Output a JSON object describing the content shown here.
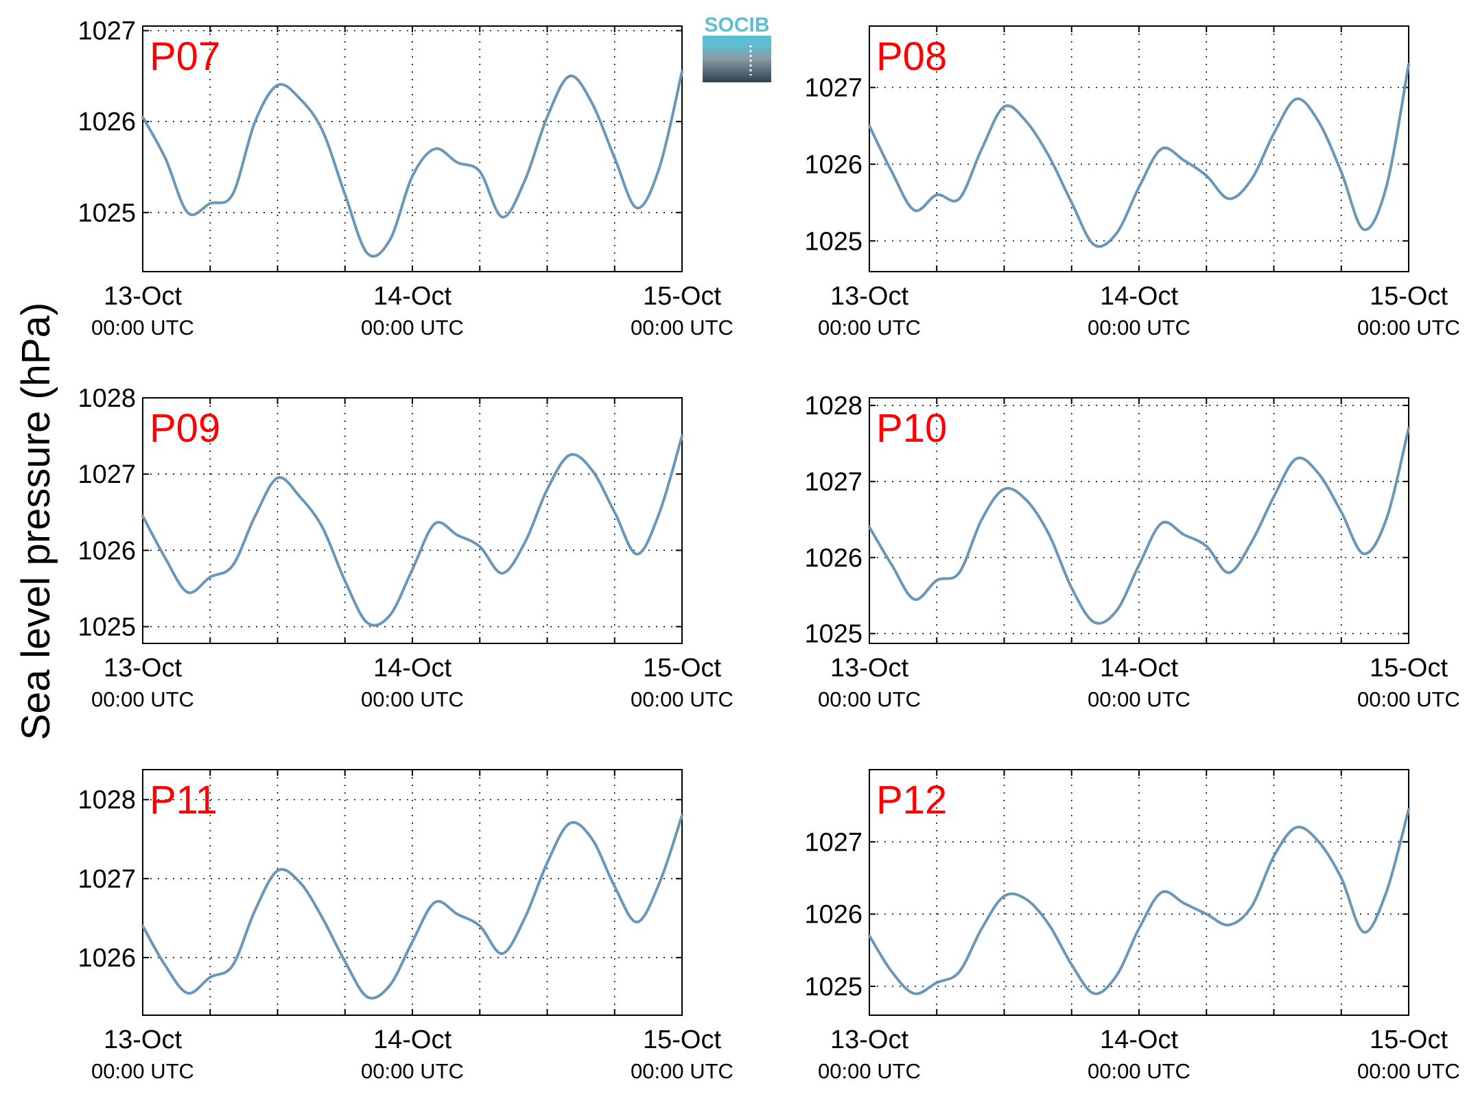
{
  "figure": {
    "ylabel": "Sea level pressure (hPa)",
    "logo_text": "SOCIB",
    "line_color": "#6a96b8",
    "label_color": "#ff0000",
    "grid": "dotted",
    "logo_colors": {
      "text": "#5bbfd0",
      "top": "#5bbfd0",
      "mid": "#8c9ca6",
      "bottom": "#2d4450"
    }
  },
  "chart_data": [
    {
      "type": "line",
      "label": "P07",
      "x_range": [
        "13-Oct 00:00 UTC",
        "15-Oct 00:00 UTC"
      ],
      "x_hours": [
        0,
        2,
        4,
        6,
        8,
        10,
        12,
        14,
        16,
        18,
        20,
        22,
        24,
        26,
        28,
        30,
        32,
        34,
        36,
        38,
        40,
        42,
        44,
        46,
        48
      ],
      "x_ticks": [
        {
          "hours": 0,
          "day": "13-Oct",
          "time": "00:00 UTC"
        },
        {
          "hours": 24,
          "day": "14-Oct",
          "time": "00:00 UTC"
        },
        {
          "hours": 48,
          "day": "15-Oct",
          "time": "00:00 UTC"
        }
      ],
      "ylim": [
        1024.35,
        1027.05
      ],
      "yticks": [
        1025,
        1026,
        1027
      ],
      "y": [
        1026.05,
        1025.6,
        1025.0,
        1025.1,
        1025.2,
        1026.0,
        1026.4,
        1026.25,
        1025.9,
        1025.2,
        1024.55,
        1024.7,
        1025.4,
        1025.7,
        1025.55,
        1025.45,
        1024.95,
        1025.35,
        1026.05,
        1026.5,
        1026.2,
        1025.6,
        1025.05,
        1025.5,
        1026.55
      ]
    },
    {
      "type": "line",
      "label": "P08",
      "x_range": [
        "13-Oct 00:00 UTC",
        "15-Oct 00:00 UTC"
      ],
      "x_hours": [
        0,
        2,
        4,
        6,
        8,
        10,
        12,
        14,
        16,
        18,
        20,
        22,
        24,
        26,
        28,
        30,
        32,
        34,
        36,
        38,
        40,
        42,
        44,
        46,
        48
      ],
      "x_ticks": [
        {
          "hours": 0,
          "day": "13-Oct",
          "time": "00:00 UTC"
        },
        {
          "hours": 24,
          "day": "14-Oct",
          "time": "00:00 UTC"
        },
        {
          "hours": 48,
          "day": "15-Oct",
          "time": "00:00 UTC"
        }
      ],
      "ylim": [
        1024.6,
        1027.8
      ],
      "yticks": [
        1025,
        1026,
        1027
      ],
      "y": [
        1026.5,
        1025.9,
        1025.4,
        1025.6,
        1025.55,
        1026.2,
        1026.75,
        1026.55,
        1026.1,
        1025.5,
        1024.95,
        1025.1,
        1025.7,
        1026.2,
        1026.05,
        1025.85,
        1025.55,
        1025.8,
        1026.4,
        1026.85,
        1026.55,
        1025.9,
        1025.15,
        1025.7,
        1027.3
      ]
    },
    {
      "type": "line",
      "label": "P09",
      "x_range": [
        "13-Oct 00:00 UTC",
        "15-Oct 00:00 UTC"
      ],
      "x_hours": [
        0,
        2,
        4,
        6,
        8,
        10,
        12,
        14,
        16,
        18,
        20,
        22,
        24,
        26,
        28,
        30,
        32,
        34,
        36,
        38,
        40,
        42,
        44,
        46,
        48
      ],
      "x_ticks": [
        {
          "hours": 0,
          "day": "13-Oct",
          "time": "00:00 UTC"
        },
        {
          "hours": 24,
          "day": "14-Oct",
          "time": "00:00 UTC"
        },
        {
          "hours": 48,
          "day": "15-Oct",
          "time": "00:00 UTC"
        }
      ],
      "ylim": [
        1024.78,
        1028.0
      ],
      "yticks": [
        1025,
        1026,
        1027,
        1028
      ],
      "y": [
        1026.45,
        1025.9,
        1025.45,
        1025.65,
        1025.8,
        1026.45,
        1026.95,
        1026.7,
        1026.3,
        1025.6,
        1025.05,
        1025.15,
        1025.75,
        1026.35,
        1026.2,
        1026.05,
        1025.7,
        1026.1,
        1026.8,
        1027.25,
        1027.05,
        1026.5,
        1025.95,
        1026.5,
        1027.5
      ]
    },
    {
      "type": "line",
      "label": "P10",
      "x_range": [
        "13-Oct 00:00 UTC",
        "15-Oct 00:00 UTC"
      ],
      "x_hours": [
        0,
        2,
        4,
        6,
        8,
        10,
        12,
        14,
        16,
        18,
        20,
        22,
        24,
        26,
        28,
        30,
        32,
        34,
        36,
        38,
        40,
        42,
        44,
        46,
        48
      ],
      "x_ticks": [
        {
          "hours": 0,
          "day": "13-Oct",
          "time": "00:00 UTC"
        },
        {
          "hours": 24,
          "day": "14-Oct",
          "time": "00:00 UTC"
        },
        {
          "hours": 48,
          "day": "15-Oct",
          "time": "00:00 UTC"
        }
      ],
      "ylim": [
        1024.87,
        1028.1
      ],
      "yticks": [
        1025,
        1026,
        1027,
        1028
      ],
      "y": [
        1026.4,
        1025.9,
        1025.45,
        1025.7,
        1025.8,
        1026.5,
        1026.9,
        1026.75,
        1026.3,
        1025.6,
        1025.15,
        1025.3,
        1025.9,
        1026.45,
        1026.3,
        1026.15,
        1025.8,
        1026.2,
        1026.8,
        1027.3,
        1027.1,
        1026.6,
        1026.05,
        1026.5,
        1027.7
      ]
    },
    {
      "type": "line",
      "label": "P11",
      "x_range": [
        "13-Oct 00:00 UTC",
        "15-Oct 00:00 UTC"
      ],
      "x_hours": [
        0,
        2,
        4,
        6,
        8,
        10,
        12,
        14,
        16,
        18,
        20,
        22,
        24,
        26,
        28,
        30,
        32,
        34,
        36,
        38,
        40,
        42,
        44,
        46,
        48
      ],
      "x_ticks": [
        {
          "hours": 0,
          "day": "13-Oct",
          "time": "00:00 UTC"
        },
        {
          "hours": 24,
          "day": "14-Oct",
          "time": "00:00 UTC"
        },
        {
          "hours": 48,
          "day": "15-Oct",
          "time": "00:00 UTC"
        }
      ],
      "ylim": [
        1025.27,
        1028.38
      ],
      "yticks": [
        1026,
        1027,
        1028
      ],
      "y": [
        1026.4,
        1025.9,
        1025.55,
        1025.75,
        1025.9,
        1026.6,
        1027.1,
        1026.95,
        1026.5,
        1025.95,
        1025.5,
        1025.65,
        1026.2,
        1026.7,
        1026.55,
        1026.4,
        1026.05,
        1026.5,
        1027.2,
        1027.7,
        1027.5,
        1026.9,
        1026.45,
        1026.95,
        1027.8
      ]
    },
    {
      "type": "line",
      "label": "P12",
      "x_range": [
        "13-Oct 00:00 UTC",
        "15-Oct 00:00 UTC"
      ],
      "x_hours": [
        0,
        2,
        4,
        6,
        8,
        10,
        12,
        14,
        16,
        18,
        20,
        22,
        24,
        26,
        28,
        30,
        32,
        34,
        36,
        38,
        40,
        42,
        44,
        46,
        48
      ],
      "x_ticks": [
        {
          "hours": 0,
          "day": "13-Oct",
          "time": "00:00 UTC"
        },
        {
          "hours": 24,
          "day": "14-Oct",
          "time": "00:00 UTC"
        },
        {
          "hours": 48,
          "day": "15-Oct",
          "time": "00:00 UTC"
        }
      ],
      "ylim": [
        1024.6,
        1028.0
      ],
      "yticks": [
        1025,
        1026,
        1027
      ],
      "y": [
        1025.7,
        1025.2,
        1024.9,
        1025.05,
        1025.2,
        1025.8,
        1026.25,
        1026.2,
        1025.85,
        1025.3,
        1024.9,
        1025.15,
        1025.8,
        1026.3,
        1026.15,
        1026.0,
        1025.85,
        1026.1,
        1026.8,
        1027.2,
        1027.0,
        1026.5,
        1025.75,
        1026.3,
        1027.45
      ]
    }
  ]
}
